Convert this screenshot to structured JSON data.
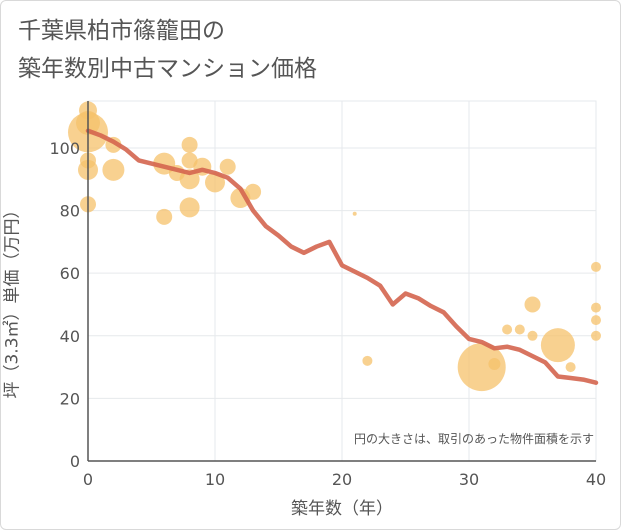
{
  "title_line1": "千葉県柏市篠籠田の",
  "title_line2": "築年数別中古マンション価格",
  "chart_data": {
    "type": "scatter",
    "xlabel": "築年数（年）",
    "ylabel": "坪（3.3㎡）単価（万円）",
    "xlim": [
      0,
      40
    ],
    "ylim": [
      0,
      115
    ],
    "xticks": [
      0,
      10,
      20,
      30,
      40
    ],
    "yticks": [
      0,
      20,
      40,
      60,
      80,
      100
    ],
    "grid": true,
    "annotation": "円の大きさは、取引のあった物件面積を示す",
    "colors": {
      "bubble": "#f5c26b",
      "line": "#d4654f",
      "grid": "#e6e9ec",
      "axis": "#555555"
    },
    "bubbles": [
      {
        "x": 0,
        "y": 112,
        "size": 9
      },
      {
        "x": 0,
        "y": 108,
        "size": 12
      },
      {
        "x": 0,
        "y": 105,
        "size": 20
      },
      {
        "x": 0,
        "y": 96,
        "size": 8
      },
      {
        "x": 0,
        "y": 93,
        "size": 10
      },
      {
        "x": 0,
        "y": 82,
        "size": 8
      },
      {
        "x": 2,
        "y": 101,
        "size": 8
      },
      {
        "x": 2,
        "y": 93,
        "size": 11
      },
      {
        "x": 6,
        "y": 95,
        "size": 11
      },
      {
        "x": 6,
        "y": 78,
        "size": 8
      },
      {
        "x": 7,
        "y": 92,
        "size": 8
      },
      {
        "x": 8,
        "y": 101,
        "size": 8
      },
      {
        "x": 8,
        "y": 96,
        "size": 8
      },
      {
        "x": 8,
        "y": 90,
        "size": 10
      },
      {
        "x": 8,
        "y": 81,
        "size": 10
      },
      {
        "x": 9,
        "y": 94,
        "size": 9
      },
      {
        "x": 10,
        "y": 89,
        "size": 10
      },
      {
        "x": 11,
        "y": 94,
        "size": 8
      },
      {
        "x": 12,
        "y": 84,
        "size": 10
      },
      {
        "x": 13,
        "y": 86,
        "size": 8
      },
      {
        "x": 21,
        "y": 79,
        "size": 2
      },
      {
        "x": 22,
        "y": 32,
        "size": 5
      },
      {
        "x": 31,
        "y": 30,
        "size": 24
      },
      {
        "x": 32,
        "y": 31,
        "size": 6
      },
      {
        "x": 33,
        "y": 42,
        "size": 5
      },
      {
        "x": 34,
        "y": 42,
        "size": 5
      },
      {
        "x": 35,
        "y": 50,
        "size": 8
      },
      {
        "x": 35,
        "y": 40,
        "size": 5
      },
      {
        "x": 37,
        "y": 37,
        "size": 17
      },
      {
        "x": 38,
        "y": 30,
        "size": 5
      },
      {
        "x": 40,
        "y": 62,
        "size": 5
      },
      {
        "x": 40,
        "y": 49,
        "size": 5
      },
      {
        "x": 40,
        "y": 45,
        "size": 5
      },
      {
        "x": 40,
        "y": 40,
        "size": 5
      }
    ],
    "trend": {
      "x": [
        0,
        1,
        2,
        3,
        4,
        5,
        6,
        7,
        8,
        9,
        10,
        11,
        12,
        13,
        14,
        15,
        16,
        17,
        18,
        19,
        20,
        21,
        22,
        23,
        24,
        25,
        26,
        27,
        28,
        29,
        30,
        31,
        32,
        33,
        34,
        35,
        36,
        37,
        38,
        39,
        40
      ],
      "y": [
        105.5,
        104,
        102,
        99.5,
        96,
        95,
        94,
        93,
        92,
        93,
        92,
        90.5,
        87,
        80,
        75,
        72,
        68.5,
        66.5,
        68.5,
        70,
        62.5,
        60.5,
        58.5,
        56,
        50,
        53.5,
        52,
        49.5,
        47.5,
        43,
        39,
        38,
        36,
        36.5,
        35.5,
        33.5,
        31.5,
        27,
        26.5,
        26,
        25
      ]
    }
  }
}
